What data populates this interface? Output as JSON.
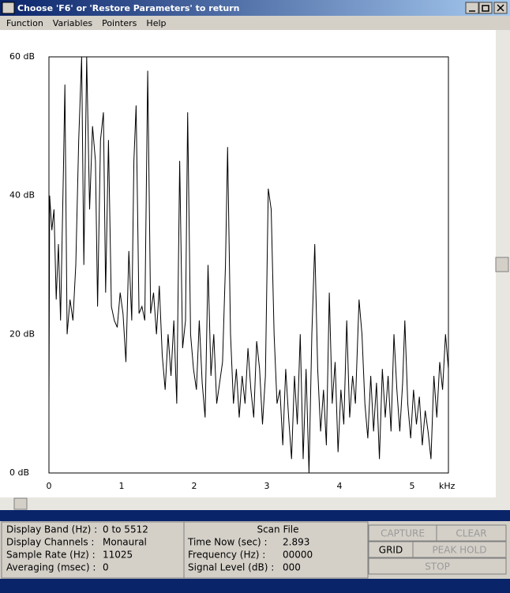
{
  "window": {
    "title": "Choose 'F6' or 'Restore Parameters' to return",
    "menu": [
      "Function",
      "Variables",
      "Pointers",
      "Help"
    ]
  },
  "chart_data": {
    "type": "line",
    "color": "#000000",
    "grid": false,
    "x_label": "kHz",
    "xlim": [
      0,
      5.5
    ],
    "xticks": [
      0,
      1,
      2,
      3,
      4,
      5
    ],
    "ylim": [
      0,
      60
    ],
    "yticks": [
      {
        "value": 0,
        "label": "0 dB"
      },
      {
        "value": 20,
        "label": "20 dB"
      },
      {
        "value": 40,
        "label": "40 dB"
      },
      {
        "value": 60,
        "label": "60 dB"
      }
    ],
    "x": [
      0.0,
      0.01,
      0.04,
      0.07,
      0.1,
      0.13,
      0.16,
      0.2,
      0.22,
      0.25,
      0.29,
      0.33,
      0.37,
      0.41,
      0.45,
      0.48,
      0.52,
      0.56,
      0.6,
      0.64,
      0.67,
      0.71,
      0.75,
      0.78,
      0.82,
      0.86,
      0.9,
      0.94,
      0.98,
      1.02,
      1.06,
      1.1,
      1.14,
      1.17,
      1.2,
      1.24,
      1.28,
      1.32,
      1.36,
      1.4,
      1.44,
      1.48,
      1.52,
      1.56,
      1.6,
      1.64,
      1.68,
      1.72,
      1.76,
      1.8,
      1.84,
      1.88,
      1.91,
      1.95,
      1.99,
      2.03,
      2.07,
      2.11,
      2.15,
      2.19,
      2.23,
      2.27,
      2.31,
      2.35,
      2.39,
      2.43,
      2.46,
      2.5,
      2.54,
      2.58,
      2.62,
      2.66,
      2.7,
      2.74,
      2.78,
      2.82,
      2.86,
      2.9,
      2.94,
      2.98,
      3.02,
      3.06,
      3.1,
      3.14,
      3.18,
      3.22,
      3.26,
      3.3,
      3.34,
      3.38,
      3.42,
      3.46,
      3.5,
      3.54,
      3.58,
      3.62,
      3.66,
      3.7,
      3.74,
      3.78,
      3.82,
      3.86,
      3.9,
      3.94,
      3.98,
      4.02,
      4.06,
      4.1,
      4.14,
      4.18,
      4.22,
      4.27,
      4.31,
      4.35,
      4.39,
      4.43,
      4.47,
      4.51,
      4.55,
      4.59,
      4.63,
      4.67,
      4.71,
      4.75,
      4.79,
      4.83,
      4.87,
      4.9,
      4.94,
      4.98,
      5.02,
      5.06,
      5.1,
      5.14,
      5.18,
      5.22,
      5.26,
      5.3,
      5.34,
      5.38,
      5.42,
      5.46,
      5.5
    ],
    "values": [
      10,
      40,
      35,
      38,
      25,
      33,
      22,
      44,
      56,
      20,
      25,
      22,
      30,
      48,
      60,
      30,
      60,
      38,
      50,
      45,
      24,
      48,
      52,
      26,
      48,
      24,
      22,
      21,
      26,
      23,
      16,
      32,
      22,
      45,
      53,
      23,
      24,
      22,
      58,
      23,
      26,
      20,
      27,
      17,
      12,
      20,
      14,
      22,
      10,
      45,
      18,
      22,
      52,
      20,
      15,
      12,
      22,
      13,
      8,
      30,
      14,
      20,
      10,
      13,
      16,
      30,
      47,
      20,
      10,
      15,
      8,
      14,
      10,
      18,
      12,
      8,
      19,
      15,
      7,
      14,
      41,
      38,
      20,
      10,
      12,
      4,
      15,
      8,
      2,
      14,
      7,
      20,
      2,
      15,
      0,
      20,
      33,
      15,
      6,
      12,
      4,
      26,
      10,
      16,
      3,
      12,
      7,
      22,
      8,
      14,
      10,
      25,
      20,
      10,
      5,
      14,
      6,
      13,
      2,
      15,
      8,
      14,
      6,
      20,
      12,
      6,
      13,
      22,
      10,
      5,
      12,
      7,
      11,
      4,
      9,
      6,
      2,
      14,
      8,
      16,
      12,
      20,
      15
    ]
  },
  "info": {
    "rows": [
      {
        "label": "Display Band (Hz) :",
        "value": "0 to 5512"
      },
      {
        "label": "Display Channels :",
        "value": "Monaural"
      },
      {
        "label": "Sample Rate (Hz) :",
        "value": "11025"
      },
      {
        "label": "Averaging (msec) :",
        "value": "0"
      }
    ]
  },
  "scan": {
    "title": "Scan File",
    "rows": [
      {
        "label": "Time Now (sec) :",
        "value": "2.893"
      },
      {
        "label": "Frequency (Hz) :",
        "value": "00000"
      },
      {
        "label": "Signal Level (dB) :",
        "value": "000"
      }
    ]
  },
  "buttons": [
    "CAPTURE",
    "CLEAR",
    "GRID",
    "PEAK HOLD",
    "STOP"
  ]
}
